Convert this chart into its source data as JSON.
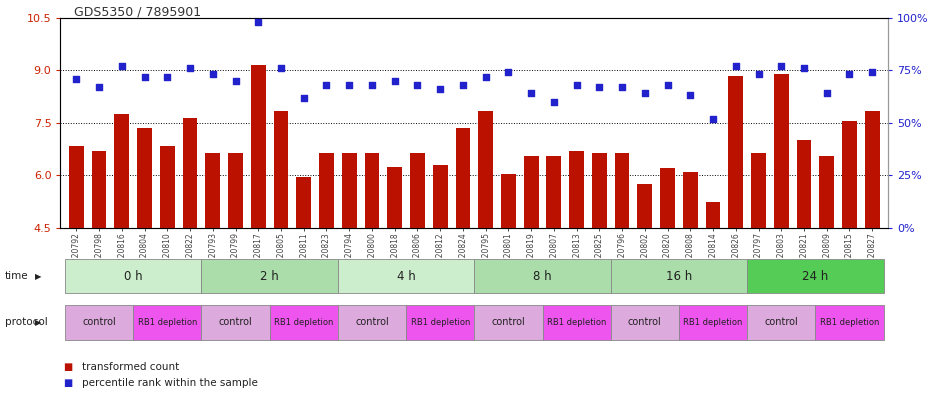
{
  "title": "GDS5350 / 7895901",
  "samples": [
    "GSM1220792",
    "GSM1220798",
    "GSM1220816",
    "GSM1220804",
    "GSM1220810",
    "GSM1220822",
    "GSM1220793",
    "GSM1220799",
    "GSM1220817",
    "GSM1220805",
    "GSM1220811",
    "GSM1220823",
    "GSM1220794",
    "GSM1220800",
    "GSM1220818",
    "GSM1220806",
    "GSM1220812",
    "GSM1220824",
    "GSM1220795",
    "GSM1220801",
    "GSM1220819",
    "GSM1220807",
    "GSM1220813",
    "GSM1220825",
    "GSM1220796",
    "GSM1220802",
    "GSM1220820",
    "GSM1220808",
    "GSM1220814",
    "GSM1220826",
    "GSM1220797",
    "GSM1220803",
    "GSM1220821",
    "GSM1220809",
    "GSM1220815",
    "GSM1220827"
  ],
  "bar_values": [
    6.85,
    6.7,
    7.75,
    7.35,
    6.85,
    7.65,
    6.65,
    6.65,
    9.15,
    7.85,
    5.95,
    6.65,
    6.65,
    6.65,
    6.25,
    6.65,
    6.3,
    7.35,
    7.85,
    6.05,
    6.55,
    6.55,
    6.7,
    6.65,
    6.65,
    5.75,
    6.2,
    6.1,
    5.25,
    8.85,
    6.65,
    8.9,
    7.0,
    6.55,
    7.55,
    7.85
  ],
  "scatter_values": [
    71,
    67,
    77,
    72,
    72,
    76,
    73,
    70,
    98,
    76,
    62,
    68,
    68,
    68,
    70,
    68,
    66,
    68,
    72,
    74,
    64,
    60,
    68,
    67,
    67,
    64,
    68,
    63,
    52,
    77,
    73,
    77,
    76,
    64,
    73,
    74
  ],
  "ylim_left": [
    4.5,
    10.5
  ],
  "ylim_right": [
    0,
    100
  ],
  "yticks_left": [
    4.5,
    6.0,
    7.5,
    9.0,
    10.5
  ],
  "yticks_right": [
    0,
    25,
    50,
    75,
    100
  ],
  "ytick_labels_right": [
    "0%",
    "25%",
    "50%",
    "75%",
    "100%"
  ],
  "bar_color": "#BB1100",
  "scatter_color": "#2222CC",
  "time_groups": [
    {
      "label": "0 h",
      "start": 0,
      "end": 6
    },
    {
      "label": "2 h",
      "start": 6,
      "end": 12
    },
    {
      "label": "4 h",
      "start": 12,
      "end": 18
    },
    {
      "label": "8 h",
      "start": 18,
      "end": 24
    },
    {
      "label": "16 h",
      "start": 24,
      "end": 30
    },
    {
      "label": "24 h",
      "start": 30,
      "end": 36
    }
  ],
  "time_group_colors": [
    "#CCEECC",
    "#AADDAA",
    "#CCEECC",
    "#AADDAA",
    "#AADDAA",
    "#55CC55"
  ],
  "protocol_groups": [
    {
      "label": "control",
      "start": 0,
      "end": 3,
      "color": "#DDAADD"
    },
    {
      "label": "RB1 depletion",
      "start": 3,
      "end": 6,
      "color": "#EE55EE"
    },
    {
      "label": "control",
      "start": 6,
      "end": 9,
      "color": "#DDAADD"
    },
    {
      "label": "RB1 depletion",
      "start": 9,
      "end": 12,
      "color": "#EE55EE"
    },
    {
      "label": "control",
      "start": 12,
      "end": 15,
      "color": "#DDAADD"
    },
    {
      "label": "RB1 depletion",
      "start": 15,
      "end": 18,
      "color": "#EE55EE"
    },
    {
      "label": "control",
      "start": 18,
      "end": 21,
      "color": "#DDAADD"
    },
    {
      "label": "RB1 depletion",
      "start": 21,
      "end": 24,
      "color": "#EE55EE"
    },
    {
      "label": "control",
      "start": 24,
      "end": 27,
      "color": "#DDAADD"
    },
    {
      "label": "RB1 depletion",
      "start": 27,
      "end": 30,
      "color": "#EE55EE"
    },
    {
      "label": "control",
      "start": 30,
      "end": 33,
      "color": "#DDAADD"
    },
    {
      "label": "RB1 depletion",
      "start": 33,
      "end": 36,
      "color": "#EE55EE"
    }
  ],
  "xlabel_time": "time",
  "xlabel_protocol": "protocol",
  "legend_bar_label": "transformed count",
  "legend_scatter_label": "percentile rank within the sample",
  "bg_color": "#FFFFFF",
  "axis_color_left": "#CC2200",
  "axis_color_right": "#2222CC"
}
